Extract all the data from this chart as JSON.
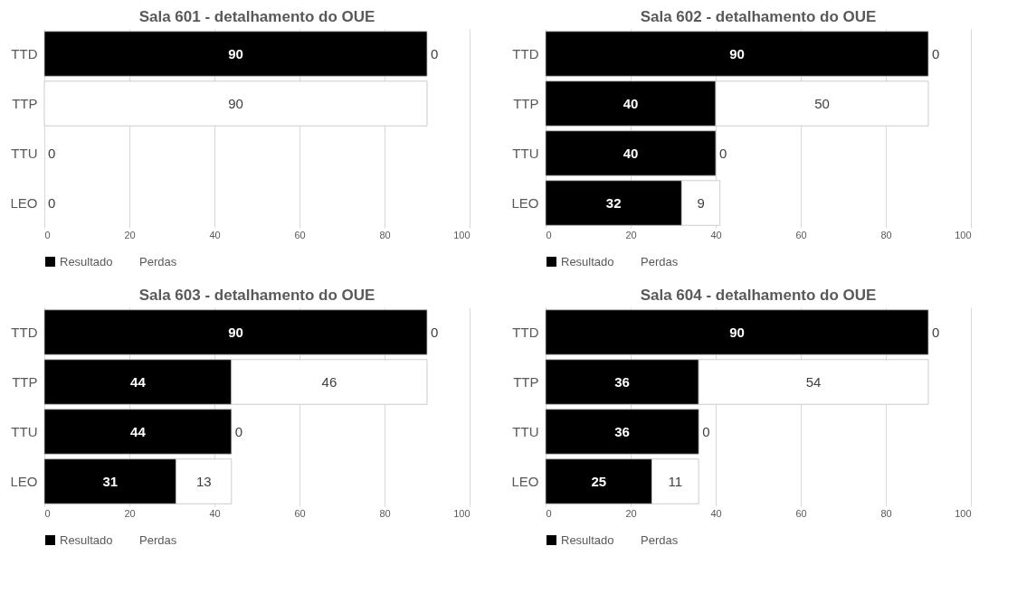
{
  "chart_data": [
    {
      "type": "bar",
      "orientation": "horizontal",
      "stacked": true,
      "title": "Sala 601 - detalhamento do OUE",
      "categories": [
        "TTD",
        "TTP",
        "TTU",
        "LEO"
      ],
      "xlim": [
        0,
        100
      ],
      "xticks": [
        0,
        20,
        40,
        60,
        80,
        100
      ],
      "grid": "x",
      "legend": "bottom",
      "series": [
        {
          "name": "Resultado",
          "color": "#000000",
          "values": [
            90,
            0,
            0,
            0
          ],
          "value_labels": [
            "90",
            null,
            null,
            null
          ]
        },
        {
          "name": "Perdas",
          "color": "#ffffff",
          "values": [
            0,
            90,
            0,
            0
          ],
          "value_labels": [
            "0",
            "90",
            "0",
            "0"
          ]
        }
      ]
    },
    {
      "type": "bar",
      "orientation": "horizontal",
      "stacked": true,
      "title": "Sala 602 - detalhamento do OUE",
      "categories": [
        "TTD",
        "TTP",
        "TTU",
        "LEO"
      ],
      "xlim": [
        0,
        100
      ],
      "xticks": [
        0,
        20,
        40,
        60,
        80,
        100
      ],
      "grid": "x",
      "legend": "bottom",
      "series": [
        {
          "name": "Resultado",
          "color": "#000000",
          "values": [
            90,
            40,
            40,
            32
          ],
          "value_labels": [
            "90",
            "40",
            "40",
            "32"
          ]
        },
        {
          "name": "Perdas",
          "color": "#ffffff",
          "values": [
            0,
            50,
            0,
            9
          ],
          "value_labels": [
            "0",
            "50",
            "0",
            "9"
          ]
        }
      ]
    },
    {
      "type": "bar",
      "orientation": "horizontal",
      "stacked": true,
      "title": "Sala 603 - detalhamento do OUE",
      "categories": [
        "TTD",
        "TTP",
        "TTU",
        "LEO"
      ],
      "xlim": [
        0,
        100
      ],
      "xticks": [
        0,
        20,
        40,
        60,
        80,
        100
      ],
      "grid": "x",
      "legend": "bottom",
      "series": [
        {
          "name": "Resultado",
          "color": "#000000",
          "values": [
            90,
            44,
            44,
            31
          ],
          "value_labels": [
            "90",
            "44",
            "44",
            "31"
          ]
        },
        {
          "name": "Perdas",
          "color": "#ffffff",
          "values": [
            0,
            46,
            0,
            13
          ],
          "value_labels": [
            "0",
            "46",
            "0",
            "13"
          ]
        }
      ]
    },
    {
      "type": "bar",
      "orientation": "horizontal",
      "stacked": true,
      "title": "Sala 604 - detalhamento do OUE",
      "categories": [
        "TTD",
        "TTP",
        "TTU",
        "LEO"
      ],
      "xlim": [
        0,
        100
      ],
      "xticks": [
        0,
        20,
        40,
        60,
        80,
        100
      ],
      "grid": "x",
      "legend": "bottom",
      "series": [
        {
          "name": "Resultado",
          "color": "#000000",
          "values": [
            90,
            36,
            36,
            25
          ],
          "value_labels": [
            "90",
            "36",
            "36",
            "25"
          ]
        },
        {
          "name": "Perdas",
          "color": "#ffffff",
          "values": [
            0,
            54,
            0,
            11
          ],
          "value_labels": [
            "0",
            "54",
            "0",
            "11"
          ]
        }
      ]
    }
  ]
}
